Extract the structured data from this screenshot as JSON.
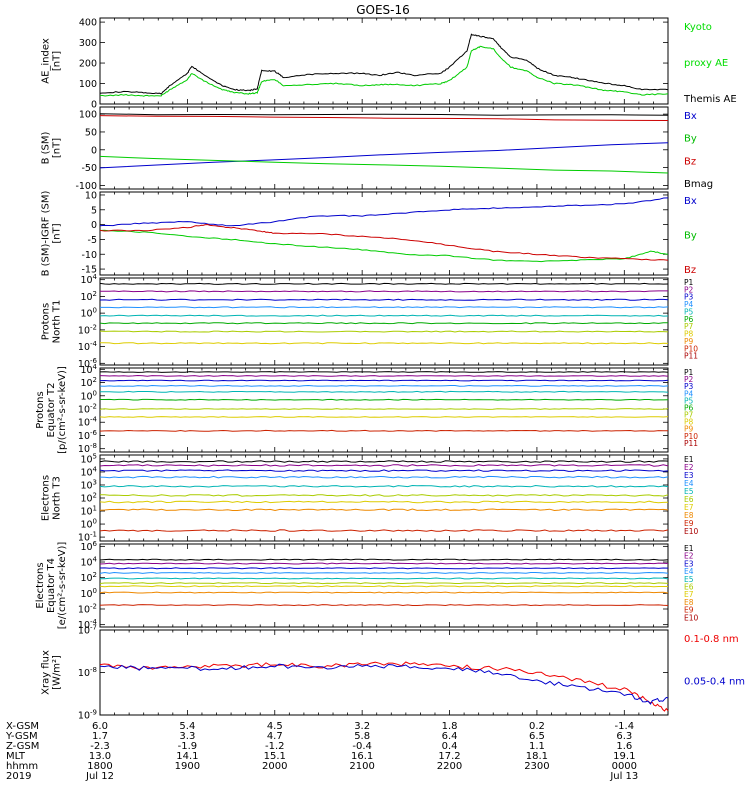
{
  "title": "GOES-16",
  "chart_data": {
    "type": "line",
    "x_hours": [
      18,
      24.5
    ],
    "panels": [
      {
        "id": "ae",
        "ylabel": [
          "AE_index",
          "[nT]"
        ],
        "ylim": [
          0,
          420
        ],
        "log": false,
        "yticks": [
          0,
          100,
          200,
          300,
          400
        ],
        "labels": [
          {
            "text": "Kyoto",
            "color": "#00dd00"
          },
          {
            "text": "proxy AE",
            "color": "#00dd00"
          },
          {
            "text": "Themis AE",
            "color": "#000000"
          }
        ],
        "series": [
          {
            "color": "#000000",
            "x": [
              18.0,
              18.3,
              18.5,
              18.7,
              18.8,
              19.0,
              19.05,
              19.2,
              19.4,
              19.55,
              19.7,
              19.8,
              19.85,
              20.0,
              20.1,
              20.4,
              20.7,
              21.0,
              21.2,
              21.4,
              21.6,
              21.9,
              22.0,
              22.2,
              22.25,
              22.35,
              22.5,
              22.6,
              22.7,
              22.9,
              23.0,
              23.2,
              23.4,
              23.6,
              23.8,
              24.0,
              24.2,
              24.5
            ],
            "y": [
              55,
              60,
              55,
              50,
              90,
              150,
              185,
              140,
              90,
              70,
              65,
              75,
              165,
              160,
              130,
              145,
              150,
              150,
              140,
              155,
              140,
              150,
              180,
              260,
              340,
              330,
              320,
              270,
              230,
              210,
              175,
              140,
              130,
              115,
              100,
              90,
              70,
              70
            ]
          },
          {
            "color": "#00cc00",
            "x": [
              18.0,
              18.3,
              18.5,
              18.7,
              18.8,
              19.0,
              19.05,
              19.2,
              19.4,
              19.55,
              19.7,
              19.8,
              19.85,
              20.0,
              20.1,
              20.4,
              20.7,
              21.0,
              21.2,
              21.4,
              21.6,
              21.9,
              22.0,
              22.2,
              22.25,
              22.35,
              22.5,
              22.6,
              22.7,
              22.9,
              23.0,
              23.2,
              23.4,
              23.6,
              23.8,
              24.0,
              24.2,
              24.5
            ],
            "y": [
              40,
              45,
              40,
              40,
              70,
              120,
              150,
              110,
              70,
              55,
              50,
              55,
              110,
              120,
              90,
              95,
              100,
              90,
              95,
              95,
              90,
              100,
              115,
              180,
              260,
              280,
              270,
              220,
              180,
              160,
              130,
              100,
              95,
              80,
              65,
              60,
              45,
              50
            ]
          }
        ]
      },
      {
        "id": "bsm",
        "ylabel": [
          "B (SM)",
          "[nT]"
        ],
        "ylim": [
          -110,
          120
        ],
        "log": false,
        "yticks": [
          -100,
          -50,
          0,
          50,
          100
        ],
        "labels": [
          {
            "text": "Bx",
            "color": "#0000cc"
          },
          {
            "text": "By",
            "color": "#00bb00"
          },
          {
            "text": "Bz",
            "color": "#cc0000"
          },
          {
            "text": "Bmag",
            "color": "#000000"
          }
        ],
        "series": [
          {
            "color": "#000000",
            "x": [
              18,
              24.5
            ],
            "y": [
              100,
              97
            ]
          },
          {
            "color": "#cc0000",
            "x": [
              18,
              24.5
            ],
            "y": [
              95,
              82
            ]
          },
          {
            "color": "#0000cc",
            "x": [
              18,
              24.5
            ],
            "y": [
              -50,
              20
            ]
          },
          {
            "color": "#00cc00",
            "x": [
              18,
              24.5
            ],
            "y": [
              -20,
              -65
            ]
          }
        ]
      },
      {
        "id": "bdiff",
        "ylabel": [
          "B (SM)-IGRF (SM)",
          "[nT]"
        ],
        "ylim": [
          -17,
          11
        ],
        "log": false,
        "yticks": [
          -15,
          -10,
          -5,
          0,
          5,
          10
        ],
        "labels": [
          {
            "text": "Bx",
            "color": "#0000cc"
          },
          {
            "text": "By",
            "color": "#00bb00"
          },
          {
            "text": "Bz",
            "color": "#cc0000"
          }
        ],
        "series": [
          {
            "color": "#0000cc",
            "x": [
              18.0,
              18.5,
              19.0,
              19.5,
              20.0,
              20.5,
              21.0,
              21.5,
              22.0,
              22.5,
              23.0,
              23.5,
              24.0,
              24.5
            ],
            "y": [
              -0.5,
              0.5,
              1,
              -0.5,
              1,
              3,
              3,
              4,
              5,
              5.5,
              6,
              6.5,
              7,
              9
            ]
          },
          {
            "color": "#00cc00",
            "x": [
              18.0,
              18.5,
              19.0,
              19.5,
              20.0,
              20.5,
              21.0,
              21.5,
              22.0,
              22.5,
              23.0,
              23.5,
              24.0,
              24.3,
              24.5
            ],
            "y": [
              -2,
              -2.5,
              -4,
              -5,
              -6.5,
              -7.5,
              -8.5,
              -10,
              -10.5,
              -12,
              -12.5,
              -12,
              -11.5,
              -9,
              -10
            ]
          },
          {
            "color": "#cc0000",
            "x": [
              18.0,
              18.5,
              19.0,
              19.2,
              19.5,
              19.8,
              20.0,
              20.5,
              21.0,
              21.5,
              22.0,
              22.5,
              23.0,
              23.5,
              24.0,
              24.5
            ],
            "y": [
              -2,
              -2,
              -1,
              0,
              -1,
              -2,
              -3,
              -3,
              -4,
              -5,
              -7,
              -9,
              -10,
              -11,
              -11.5,
              -12
            ]
          }
        ]
      },
      {
        "id": "p1",
        "ylabel": [
          "Protons",
          "North T1"
        ],
        "ylim": [
          -6.2,
          4.2
        ],
        "log": true,
        "yticks": [
          4,
          2,
          0,
          -2,
          -4,
          -6
        ],
        "labels": [
          {
            "text": "P1",
            "color": "#000000"
          },
          {
            "text": "P2",
            "color": "#8a008a"
          },
          {
            "text": "P3",
            "color": "#0000cc"
          },
          {
            "text": "P4",
            "color": "#1e90ff"
          },
          {
            "text": "P5",
            "color": "#00b4b4"
          },
          {
            "text": "P6",
            "color": "#00aa00"
          },
          {
            "text": "P7",
            "color": "#aacc00"
          },
          {
            "text": "P8",
            "color": "#ddcc00"
          },
          {
            "text": "P9",
            "color": "#ee8800"
          },
          {
            "text": "P10",
            "color": "#cc2200"
          },
          {
            "text": "P11",
            "color": "#aa0000"
          }
        ],
        "series": [
          {
            "color": "#000000",
            "y": 3.5
          },
          {
            "color": "#8a008a",
            "y": 2.6
          },
          {
            "color": "#0000cc",
            "y": 1.6
          },
          {
            "color": "#1e90ff",
            "y": 0.7
          },
          {
            "color": "#00b4b4",
            "y": -0.3
          },
          {
            "color": "#00aa00",
            "y": -1.2
          },
          {
            "color": "#aacc00",
            "y": -2.2
          },
          {
            "color": "#ddcc00",
            "y": -3.6
          }
        ]
      },
      {
        "id": "p2",
        "ylabel": [
          "Protons",
          "Equator T2",
          "[p/(cm²-s-sr-keV)]"
        ],
        "ylim": [
          -8.5,
          4.2
        ],
        "log": true,
        "yticks": [
          4,
          2,
          0,
          -2,
          -4,
          -6,
          -8
        ],
        "labels": [
          {
            "text": "P1",
            "color": "#000000"
          },
          {
            "text": "P2",
            "color": "#8a008a"
          },
          {
            "text": "P3",
            "color": "#0000cc"
          },
          {
            "text": "P4",
            "color": "#1e90ff"
          },
          {
            "text": "P5",
            "color": "#00b4b4"
          },
          {
            "text": "P6",
            "color": "#00aa00"
          },
          {
            "text": "P7",
            "color": "#aacc00"
          },
          {
            "text": "P8",
            "color": "#ddcc00"
          },
          {
            "text": "P9",
            "color": "#ee8800"
          },
          {
            "text": "P10",
            "color": "#cc2200"
          },
          {
            "text": "P11",
            "color": "#aa0000"
          }
        ],
        "series": [
          {
            "color": "#000000",
            "y": 3.6
          },
          {
            "color": "#8a008a",
            "y": 3.0
          },
          {
            "color": "#0000cc",
            "y": 2.3
          },
          {
            "color": "#1e90ff",
            "y": 1.5
          },
          {
            "color": "#00b4b4",
            "y": 0.6
          },
          {
            "color": "#00aa00",
            "y": -0.6
          },
          {
            "color": "#aacc00",
            "y": -2.0
          },
          {
            "color": "#ddcc00",
            "y": -3.2
          },
          {
            "color": "#cc2200",
            "y": -5.3
          }
        ]
      },
      {
        "id": "e3",
        "ylabel": [
          "Electrons",
          "North T3"
        ],
        "ylim": [
          -1.3,
          5.3
        ],
        "log": true,
        "yticks": [
          5,
          4,
          3,
          2,
          1,
          0,
          -1
        ],
        "labels": [
          {
            "text": "E1",
            "color": "#000000"
          },
          {
            "text": "E2",
            "color": "#8a008a"
          },
          {
            "text": "E3",
            "color": "#0000cc"
          },
          {
            "text": "E4",
            "color": "#1e90ff"
          },
          {
            "text": "E5",
            "color": "#00b4b4"
          },
          {
            "text": "E6",
            "color": "#aacc00"
          },
          {
            "text": "E7",
            "color": "#ddcc00"
          },
          {
            "text": "E8",
            "color": "#ee8800"
          },
          {
            "text": "E9",
            "color": "#cc2200"
          },
          {
            "text": "E10",
            "color": "#aa0000"
          }
        ],
        "series": [
          {
            "color": "#000000",
            "y": 4.8
          },
          {
            "color": "#8a008a",
            "y": 4.5
          },
          {
            "color": "#0000cc",
            "y": 4.1
          },
          {
            "color": "#1e90ff",
            "y": 3.6
          },
          {
            "color": "#00b4b4",
            "y": 2.9
          },
          {
            "color": "#aacc00",
            "y": 2.2
          },
          {
            "color": "#ddcc00",
            "y": 1.7
          },
          {
            "color": "#ee8800",
            "y": 1.1
          },
          {
            "color": "#cc2200",
            "y": -0.5
          }
        ]
      },
      {
        "id": "e4",
        "ylabel": [
          "Electrons",
          "Equator T4",
          "[e/(cm²-s-sr-keV)]"
        ],
        "ylim": [
          -4.3,
          6.3
        ],
        "log": true,
        "yticks": [
          6,
          4,
          2,
          0,
          -2,
          -4
        ],
        "labels": [
          {
            "text": "E1",
            "color": "#000000"
          },
          {
            "text": "E2",
            "color": "#8a008a"
          },
          {
            "text": "E3",
            "color": "#0000cc"
          },
          {
            "text": "E4",
            "color": "#1e90ff"
          },
          {
            "text": "E5",
            "color": "#00b4b4"
          },
          {
            "text": "E6",
            "color": "#aacc00"
          },
          {
            "text": "E7",
            "color": "#ddcc00"
          },
          {
            "text": "E8",
            "color": "#ee8800"
          },
          {
            "text": "E9",
            "color": "#cc2200"
          },
          {
            "text": "E10",
            "color": "#aa0000"
          }
        ],
        "series": [
          {
            "color": "#000000",
            "y": 4.3
          },
          {
            "color": "#8a008a",
            "y": 3.8
          },
          {
            "color": "#0000cc",
            "y": 3.2
          },
          {
            "color": "#1e90ff",
            "y": 2.6
          },
          {
            "color": "#00b4b4",
            "y": 1.9
          },
          {
            "color": "#aacc00",
            "y": 1.3
          },
          {
            "color": "#ddcc00",
            "y": 0.9
          },
          {
            "color": "#ee8800",
            "y": 0.1
          },
          {
            "color": "#cc2200",
            "y": -1.5
          }
        ]
      },
      {
        "id": "xray",
        "ylabel": [
          "Xray flux",
          "[W/m²]"
        ],
        "ylim": [
          -9,
          -7
        ],
        "log": true,
        "yticks": [
          -7,
          -8,
          -9
        ],
        "labels": [
          {
            "text": "0.1-0.8 nm",
            "color": "#ee0000"
          },
          {
            "text": "0.05-0.4 nm",
            "color": "#0000cc"
          }
        ],
        "series": [
          {
            "color": "#ee0000",
            "x": [
              18.0,
              18.5,
              19.0,
              19.5,
              20.0,
              20.5,
              21.0,
              21.5,
              22.0,
              22.5,
              23.0,
              23.5,
              24.0,
              24.3,
              24.5
            ],
            "y": [
              -7.8,
              -7.9,
              -7.85,
              -7.85,
              -7.8,
              -7.85,
              -7.8,
              -7.8,
              -7.85,
              -7.9,
              -8.0,
              -8.2,
              -8.4,
              -8.7,
              -8.9
            ]
          },
          {
            "color": "#0000cc",
            "x": [
              18.0,
              18.5,
              19.0,
              19.5,
              20.0,
              20.5,
              21.0,
              21.5,
              22.0,
              22.5,
              23.0,
              23.5,
              24.0,
              24.3,
              24.5
            ],
            "y": [
              -7.85,
              -7.9,
              -7.9,
              -7.9,
              -7.85,
              -7.9,
              -7.85,
              -7.85,
              -7.9,
              -8.0,
              -8.2,
              -8.35,
              -8.5,
              -8.7,
              -8.6
            ]
          }
        ]
      }
    ],
    "xaxis": {
      "rows": [
        "X-GSM",
        "Y-GSM",
        "Z-GSM",
        "MLT",
        "hhmm",
        "2019"
      ],
      "columns": [
        [
          "6.0",
          "1.7",
          "-2.3",
          "13.0",
          "1800",
          "Jul 12"
        ],
        [
          "5.4",
          "3.3",
          "-1.9",
          "14.1",
          "1900",
          ""
        ],
        [
          "4.5",
          "4.7",
          "-1.2",
          "15.1",
          "2000",
          ""
        ],
        [
          "3.2",
          "5.8",
          "-0.4",
          "16.1",
          "2100",
          ""
        ],
        [
          "1.8",
          "6.4",
          "0.4",
          "17.2",
          "2200",
          ""
        ],
        [
          "0.2",
          "6.5",
          "1.1",
          "18.1",
          "2300",
          ""
        ],
        [
          "-1.4",
          "6.3",
          "1.6",
          "19.1",
          "0000",
          "Jul 13"
        ]
      ]
    }
  }
}
